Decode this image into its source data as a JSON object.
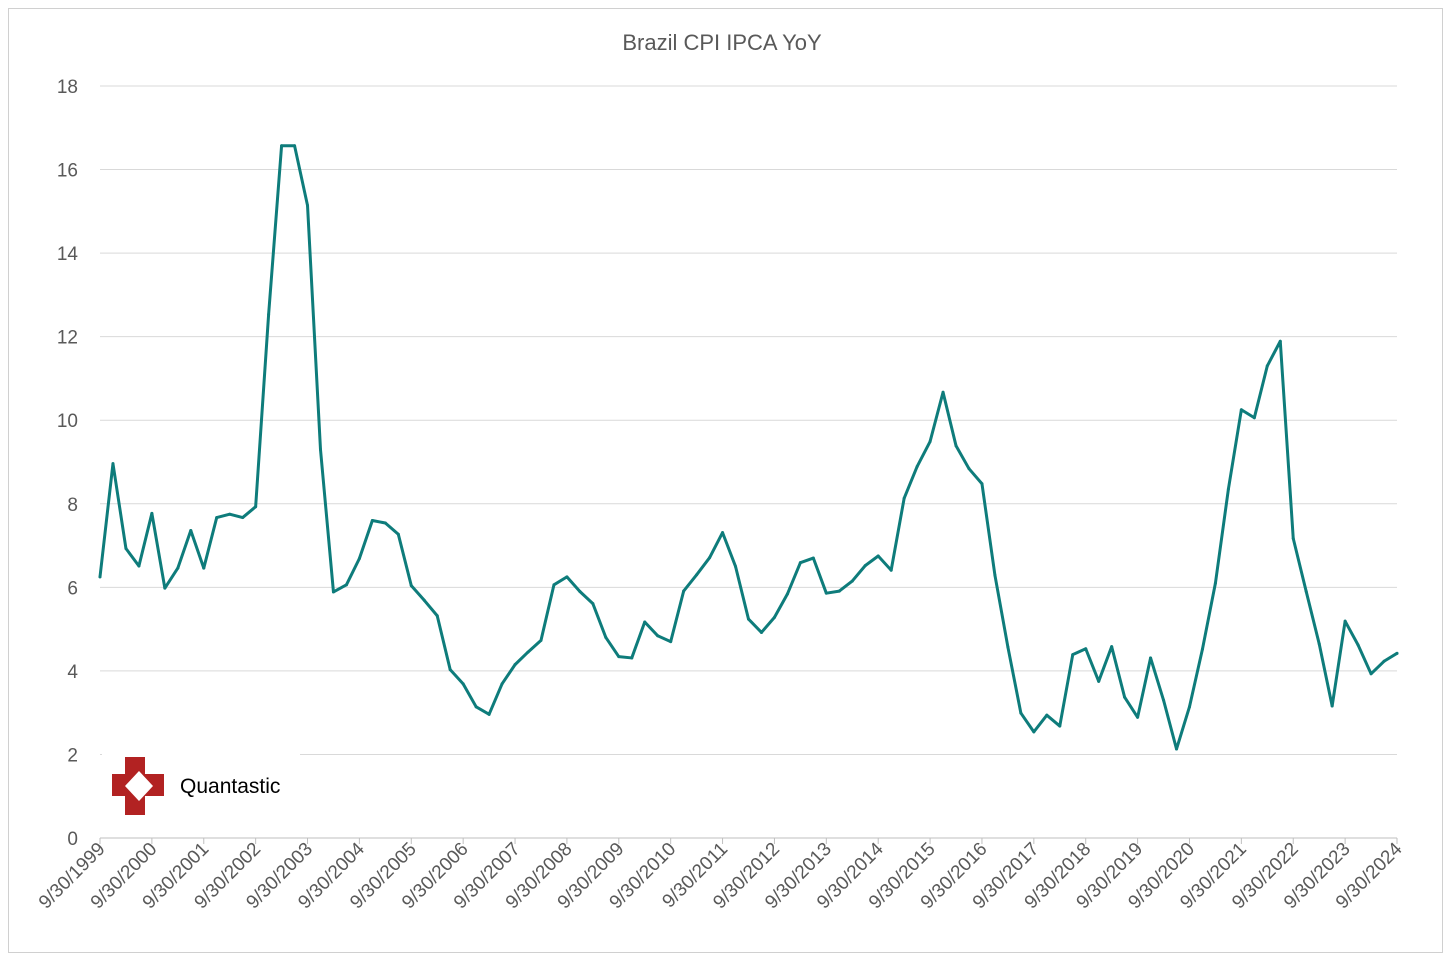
{
  "chart_data": {
    "type": "line",
    "title": "Brazil CPI IPCA YoY",
    "xlabel": "",
    "ylabel": "",
    "ylim": [
      0,
      18
    ],
    "yticks": [
      "0",
      "2",
      "4",
      "6",
      "8",
      "10",
      "12",
      "14",
      "16",
      "18"
    ],
    "grid": "horizontal",
    "legend": "none",
    "x_tick_labels": [
      "9/30/1999",
      "9/30/2000",
      "9/30/2001",
      "9/30/2002",
      "9/30/2003",
      "9/30/2004",
      "9/30/2005",
      "9/30/2006",
      "9/30/2007",
      "9/30/2008",
      "9/30/2009",
      "9/30/2010",
      "9/30/2011",
      "9/30/2012",
      "9/30/2013",
      "9/30/2014",
      "9/30/2015",
      "9/30/2016",
      "9/30/2017",
      "9/30/2018",
      "9/30/2019",
      "9/30/2020",
      "9/30/2021",
      "9/30/2022",
      "9/30/2023",
      "9/30/2024"
    ],
    "x_frequency": "quarterly",
    "series": [
      {
        "color": "#0e7c7b",
        "values": [
          6.25,
          8.96,
          6.93,
          6.51,
          7.77,
          5.98,
          6.46,
          7.36,
          6.46,
          7.67,
          7.75,
          7.67,
          7.93,
          12.53,
          16.57,
          16.57,
          15.14,
          9.3,
          5.89,
          6.06,
          6.69,
          7.6,
          7.54,
          7.27,
          6.04,
          5.69,
          5.32,
          4.03,
          3.69,
          3.14,
          2.96,
          3.69,
          4.15,
          4.45,
          4.73,
          6.06,
          6.25,
          5.9,
          5.61,
          4.8,
          4.34,
          4.31,
          5.17,
          4.84,
          4.7,
          5.91,
          6.3,
          6.71,
          7.31,
          6.5,
          5.24,
          4.92,
          5.28,
          5.84,
          6.59,
          6.7,
          5.86,
          5.91,
          6.15,
          6.52,
          6.75,
          6.41,
          8.13,
          8.89,
          9.49,
          10.67,
          9.39,
          8.84,
          8.48,
          6.29,
          4.57,
          2.99,
          2.54,
          2.94,
          2.68,
          4.39,
          4.53,
          3.75,
          4.58,
          3.37,
          2.89,
          4.31,
          3.3,
          2.13,
          3.14,
          4.52,
          6.1,
          8.35,
          10.25,
          10.06,
          11.3,
          11.89,
          7.17,
          5.9,
          4.65,
          3.16,
          5.19,
          4.62,
          3.93,
          4.23,
          4.42
        ]
      }
    ]
  },
  "watermark": {
    "logo_text": "Quantastic",
    "logo_color": "#b22222"
  }
}
